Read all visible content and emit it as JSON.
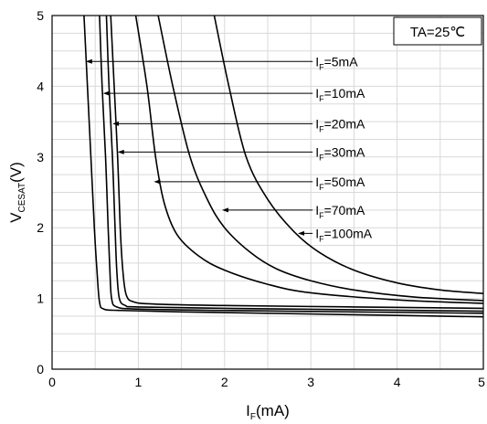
{
  "chart_data": {
    "type": "line",
    "xlabel": "I",
    "xlabel_sub": "F",
    "xlabel_unit": "(mA)",
    "ylabel": "V",
    "ylabel_sub": "CESAT",
    "ylabel_unit": "(V)",
    "xlim": [
      0,
      5
    ],
    "ylim": [
      0,
      5
    ],
    "x_ticks": [
      "0",
      "1",
      "2",
      "3",
      "4",
      "5"
    ],
    "y_ticks": [
      "0",
      "1",
      "2",
      "3",
      "4",
      "5"
    ],
    "x_minor_step": 0.5,
    "y_minor_step": 0.25,
    "grid": true,
    "condition_label": "TA=25℃",
    "condition_position": "top-right",
    "series": [
      {
        "name": "IF=5mA",
        "points": [
          [
            0.37,
            5.0
          ],
          [
            0.41,
            4.0
          ],
          [
            0.45,
            3.0
          ],
          [
            0.49,
            2.0
          ],
          [
            0.52,
            1.4
          ],
          [
            0.55,
            0.95
          ],
          [
            0.6,
            0.85
          ],
          [
            0.8,
            0.83
          ],
          [
            1.5,
            0.81
          ],
          [
            3.0,
            0.78
          ],
          [
            5.0,
            0.74
          ]
        ],
        "label": {
          "prefix": "I",
          "sub": "F",
          "suffix": "=5mA"
        },
        "label_at": [
          3.0,
          4.35
        ],
        "arrow_to": [
          0.39,
          4.35
        ]
      },
      {
        "name": "IF=10mA",
        "points": [
          [
            0.55,
            5.0
          ],
          [
            0.58,
            4.0
          ],
          [
            0.62,
            3.0
          ],
          [
            0.65,
            2.0
          ],
          [
            0.67,
            1.4
          ],
          [
            0.69,
            1.0
          ],
          [
            0.75,
            0.88
          ],
          [
            1.0,
            0.85
          ],
          [
            2.0,
            0.83
          ],
          [
            3.5,
            0.81
          ],
          [
            5.0,
            0.79
          ]
        ],
        "label": {
          "prefix": "I",
          "sub": "F",
          "suffix": "=10mA"
        },
        "label_at": [
          3.0,
          3.9
        ],
        "arrow_to": [
          0.59,
          3.9
        ]
      },
      {
        "name": "IF=20mA",
        "points": [
          [
            0.63,
            5.0
          ],
          [
            0.66,
            4.0
          ],
          [
            0.7,
            3.0
          ],
          [
            0.73,
            2.0
          ],
          [
            0.75,
            1.4
          ],
          [
            0.78,
            1.0
          ],
          [
            0.85,
            0.9
          ],
          [
            1.0,
            0.88
          ],
          [
            2.0,
            0.86
          ],
          [
            3.5,
            0.84
          ],
          [
            5.0,
            0.82
          ]
        ],
        "label": {
          "prefix": "I",
          "sub": "F",
          "suffix": "=20mA"
        },
        "label_at": [
          3.0,
          3.47
        ],
        "arrow_to": [
          0.7,
          3.47
        ]
      },
      {
        "name": "IF=30mA",
        "points": [
          [
            0.68,
            5.0
          ],
          [
            0.72,
            4.0
          ],
          [
            0.76,
            3.0
          ],
          [
            0.79,
            2.0
          ],
          [
            0.82,
            1.4
          ],
          [
            0.86,
            1.05
          ],
          [
            0.95,
            0.95
          ],
          [
            1.2,
            0.92
          ],
          [
            2.0,
            0.9
          ],
          [
            3.5,
            0.88
          ],
          [
            5.0,
            0.86
          ]
        ],
        "label": {
          "prefix": "I",
          "sub": "F",
          "suffix": "=30mA"
        },
        "label_at": [
          3.0,
          3.07
        ],
        "arrow_to": [
          0.76,
          3.07
        ]
      },
      {
        "name": "IF=50mA",
        "points": [
          [
            0.97,
            5.0
          ],
          [
            1.1,
            4.0
          ],
          [
            1.2,
            3.0
          ],
          [
            1.3,
            2.35
          ],
          [
            1.45,
            1.9
          ],
          [
            1.7,
            1.6
          ],
          [
            2.0,
            1.4
          ],
          [
            2.5,
            1.2
          ],
          [
            3.0,
            1.08
          ],
          [
            4.0,
            0.98
          ],
          [
            5.0,
            0.93
          ]
        ],
        "label": {
          "prefix": "I",
          "sub": "F",
          "suffix": "=50mA"
        },
        "label_at": [
          3.0,
          2.65
        ],
        "arrow_to": [
          1.18,
          2.65
        ]
      },
      {
        "name": "IF=70mA",
        "points": [
          [
            1.23,
            5.0
          ],
          [
            1.4,
            4.0
          ],
          [
            1.6,
            3.0
          ],
          [
            1.8,
            2.4
          ],
          [
            2.0,
            2.0
          ],
          [
            2.3,
            1.65
          ],
          [
            2.6,
            1.42
          ],
          [
            3.0,
            1.25
          ],
          [
            3.5,
            1.12
          ],
          [
            4.2,
            1.02
          ],
          [
            5.0,
            0.97
          ]
        ],
        "label": {
          "prefix": "I",
          "sub": "F",
          "suffix": "=70mA"
        },
        "label_at": [
          3.0,
          2.25
        ],
        "arrow_to": [
          1.97,
          2.25
        ]
      },
      {
        "name": "IF=100mA",
        "points": [
          [
            1.88,
            5.0
          ],
          [
            2.05,
            4.0
          ],
          [
            2.25,
            3.0
          ],
          [
            2.5,
            2.4
          ],
          [
            2.8,
            1.95
          ],
          [
            3.1,
            1.65
          ],
          [
            3.5,
            1.4
          ],
          [
            4.0,
            1.22
          ],
          [
            4.5,
            1.12
          ],
          [
            5.0,
            1.07
          ]
        ],
        "label": {
          "prefix": "I",
          "sub": "F",
          "suffix": "=100mA"
        },
        "label_at": [
          3.0,
          1.92
        ],
        "arrow_to": [
          2.85,
          1.92
        ]
      }
    ]
  }
}
